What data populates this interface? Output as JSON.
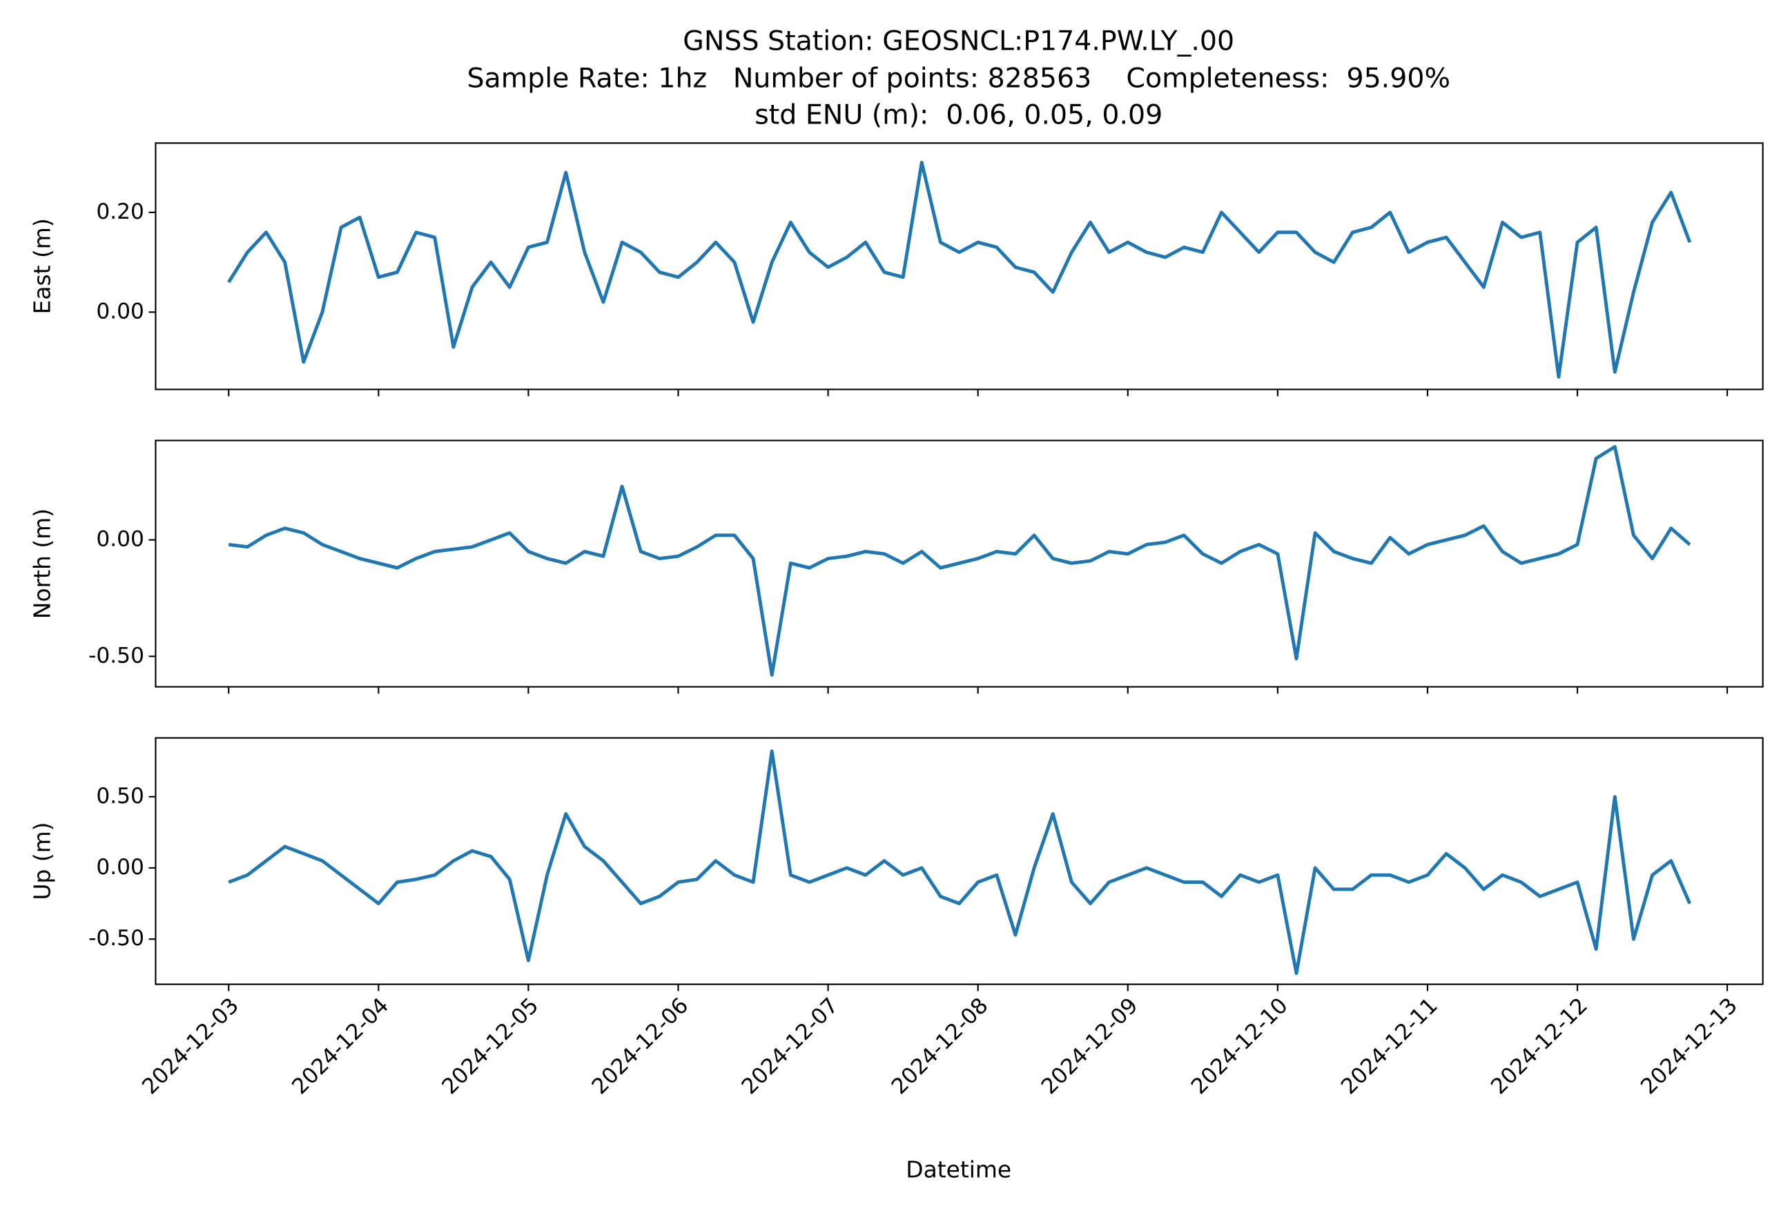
{
  "chart_data": {
    "type": "line",
    "title": [
      "GNSS Station: GEOSNCL:P174.PW.LY_.00",
      "Sample Rate: 1hz   Number of points: 828563    Completeness:  95.90%",
      "std ENU (m):  0.06, 0.05, 0.09"
    ],
    "xlabel": "Datetime",
    "x": [
      "2024-12-03T00:00",
      "2024-12-03T03:00",
      "2024-12-03T06:00",
      "2024-12-03T09:00",
      "2024-12-03T12:00",
      "2024-12-03T15:00",
      "2024-12-03T18:00",
      "2024-12-03T21:00",
      "2024-12-04T00:00",
      "2024-12-04T03:00",
      "2024-12-04T06:00",
      "2024-12-04T09:00",
      "2024-12-04T12:00",
      "2024-12-04T15:00",
      "2024-12-04T18:00",
      "2024-12-04T21:00",
      "2024-12-05T00:00",
      "2024-12-05T03:00",
      "2024-12-05T06:00",
      "2024-12-05T09:00",
      "2024-12-05T12:00",
      "2024-12-05T15:00",
      "2024-12-05T18:00",
      "2024-12-05T21:00",
      "2024-12-06T00:00",
      "2024-12-06T03:00",
      "2024-12-06T06:00",
      "2024-12-06T09:00",
      "2024-12-06T12:00",
      "2024-12-06T15:00",
      "2024-12-06T18:00",
      "2024-12-06T21:00",
      "2024-12-07T00:00",
      "2024-12-07T03:00",
      "2024-12-07T06:00",
      "2024-12-07T09:00",
      "2024-12-07T12:00",
      "2024-12-07T15:00",
      "2024-12-07T18:00",
      "2024-12-07T21:00",
      "2024-12-08T00:00",
      "2024-12-08T03:00",
      "2024-12-08T06:00",
      "2024-12-08T09:00",
      "2024-12-08T12:00",
      "2024-12-08T15:00",
      "2024-12-08T18:00",
      "2024-12-08T21:00",
      "2024-12-09T00:00",
      "2024-12-09T03:00",
      "2024-12-09T06:00",
      "2024-12-09T09:00",
      "2024-12-09T12:00",
      "2024-12-09T15:00",
      "2024-12-09T18:00",
      "2024-12-09T21:00",
      "2024-12-10T00:00",
      "2024-12-10T03:00",
      "2024-12-10T06:00",
      "2024-12-10T09:00",
      "2024-12-10T12:00",
      "2024-12-10T15:00",
      "2024-12-10T18:00",
      "2024-12-10T21:00",
      "2024-12-11T00:00",
      "2024-12-11T03:00",
      "2024-12-11T06:00",
      "2024-12-11T09:00",
      "2024-12-11T12:00",
      "2024-12-11T15:00",
      "2024-12-11T18:00",
      "2024-12-11T21:00",
      "2024-12-12T00:00",
      "2024-12-12T03:00",
      "2024-12-12T06:00",
      "2024-12-12T09:00",
      "2024-12-12T12:00",
      "2024-12-12T15:00",
      "2024-12-12T18:00"
    ],
    "xlim": [
      "2024-12-02T12:18",
      "2024-12-13T05:42"
    ],
    "xticks": [
      "2024-12-03",
      "2024-12-04",
      "2024-12-05",
      "2024-12-06",
      "2024-12-07",
      "2024-12-08",
      "2024-12-09",
      "2024-12-10",
      "2024-12-11",
      "2024-12-12",
      "2024-12-13"
    ],
    "panels": [
      {
        "ylabel": "East (m)",
        "color": "#1f77b4",
        "ylim": [
          -0.155,
          0.339
        ],
        "yticks": [
          {
            "value": 0,
            "label": "0.00"
          },
          {
            "value": 0.2,
            "label": "0.20"
          }
        ],
        "values": [
          0.06,
          0.12,
          0.16,
          0.1,
          -0.1,
          0.0,
          0.17,
          0.19,
          0.07,
          0.08,
          0.16,
          0.15,
          -0.07,
          0.05,
          0.1,
          0.05,
          0.13,
          0.14,
          0.28,
          0.12,
          0.02,
          0.14,
          0.12,
          0.08,
          0.07,
          0.1,
          0.14,
          0.1,
          -0.02,
          0.1,
          0.18,
          0.12,
          0.09,
          0.11,
          0.14,
          0.08,
          0.07,
          0.3,
          0.14,
          0.12,
          0.14,
          0.13,
          0.09,
          0.08,
          0.04,
          0.12,
          0.18,
          0.12,
          0.14,
          0.12,
          0.11,
          0.13,
          0.12,
          0.2,
          0.16,
          0.12,
          0.16,
          0.16,
          0.12,
          0.1,
          0.16,
          0.17,
          0.2,
          0.12,
          0.14,
          0.15,
          0.1,
          0.05,
          0.18,
          0.15,
          0.16,
          -0.13,
          0.14,
          0.17,
          -0.12,
          0.04,
          0.18,
          0.24,
          0.14
        ]
      },
      {
        "ylabel": "North (m)",
        "color": "#1f77b4",
        "ylim": [
          -0.631,
          0.427
        ],
        "yticks": [
          {
            "value": -0.5,
            "label": "-0.50"
          },
          {
            "value": 0,
            "label": "0.00"
          }
        ],
        "values": [
          -0.02,
          -0.03,
          0.02,
          0.05,
          0.03,
          -0.02,
          -0.05,
          -0.08,
          -0.1,
          -0.12,
          -0.08,
          -0.05,
          -0.04,
          -0.03,
          0.0,
          0.03,
          -0.05,
          -0.08,
          -0.1,
          -0.05,
          -0.07,
          0.23,
          -0.05,
          -0.08,
          -0.07,
          -0.03,
          0.02,
          0.02,
          -0.08,
          -0.58,
          -0.1,
          -0.12,
          -0.08,
          -0.07,
          -0.05,
          -0.06,
          -0.1,
          -0.05,
          -0.12,
          -0.1,
          -0.08,
          -0.05,
          -0.06,
          0.02,
          -0.08,
          -0.1,
          -0.09,
          -0.05,
          -0.06,
          -0.02,
          -0.01,
          0.02,
          -0.06,
          -0.1,
          -0.05,
          -0.02,
          -0.06,
          -0.51,
          0.03,
          -0.05,
          -0.08,
          -0.1,
          0.01,
          -0.06,
          -0.02,
          0.0,
          0.02,
          0.06,
          -0.05,
          -0.1,
          -0.08,
          -0.06,
          -0.02,
          0.35,
          0.4,
          0.02,
          -0.08,
          0.05,
          -0.02
        ]
      },
      {
        "ylabel": "Up (m)",
        "color": "#1f77b4",
        "ylim": [
          -0.817,
          0.913
        ],
        "yticks": [
          {
            "value": -0.5,
            "label": "-0.50"
          },
          {
            "value": 0,
            "label": "0.00"
          },
          {
            "value": 0.5,
            "label": "0.50"
          }
        ],
        "values": [
          -0.1,
          -0.05,
          0.05,
          0.15,
          0.1,
          0.05,
          -0.05,
          -0.15,
          -0.25,
          -0.1,
          -0.08,
          -0.05,
          0.05,
          0.12,
          0.08,
          -0.08,
          -0.65,
          -0.05,
          0.38,
          0.15,
          0.05,
          -0.1,
          -0.25,
          -0.2,
          -0.1,
          -0.08,
          0.05,
          -0.05,
          -0.1,
          0.82,
          -0.05,
          -0.1,
          -0.05,
          0.0,
          -0.05,
          0.05,
          -0.05,
          0.0,
          -0.2,
          -0.25,
          -0.1,
          -0.05,
          -0.47,
          0.0,
          0.38,
          -0.1,
          -0.25,
          -0.1,
          -0.05,
          0.0,
          -0.05,
          -0.1,
          -0.1,
          -0.2,
          -0.05,
          -0.1,
          -0.05,
          -0.74,
          0.0,
          -0.15,
          -0.15,
          -0.05,
          -0.05,
          -0.1,
          -0.05,
          0.1,
          0.0,
          -0.15,
          -0.05,
          -0.1,
          -0.2,
          -0.15,
          -0.1,
          -0.57,
          0.5,
          -0.5,
          -0.05,
          0.05,
          -0.25
        ]
      }
    ]
  }
}
